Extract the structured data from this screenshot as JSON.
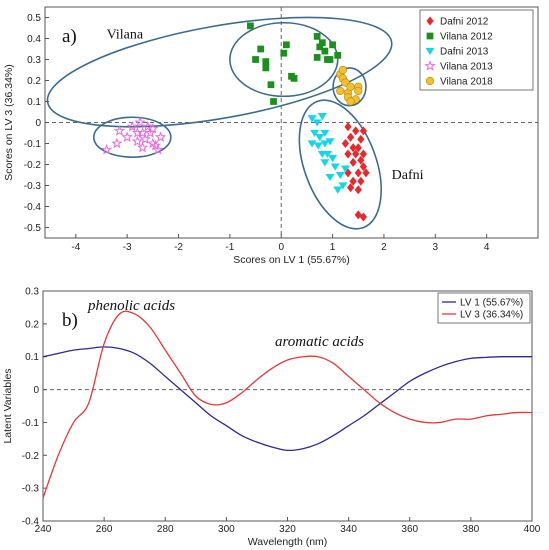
{
  "chart_data": [
    {
      "type": "scatter",
      "panel_label": "a)",
      "xlabel": "Scores on LV 1 (55.67%)",
      "ylabel": "Scores on LV 3 (36.34%)",
      "xlim": [
        -4.6,
        5.0
      ],
      "ylim": [
        -0.55,
        0.55
      ],
      "xticks": [
        -4,
        -3,
        -2,
        -1,
        0,
        1,
        2,
        3,
        4
      ],
      "yticks": [
        -0.5,
        -0.4,
        -0.3,
        -0.2,
        -0.1,
        0,
        0.1,
        0.2,
        0.3,
        0.4,
        0.5
      ],
      "grid": false,
      "legend_position": "top-right",
      "annotations": [
        {
          "text": "Vilana",
          "x": -3.4,
          "y": 0.4
        },
        {
          "text": "Dafni",
          "x": 2.15,
          "y": -0.27
        }
      ],
      "series": [
        {
          "name": "Dafni 2012",
          "marker": "diamond",
          "color": "#e8282b",
          "points": [
            [
              1.3,
              -0.02
            ],
            [
              1.45,
              -0.04
            ],
            [
              1.55,
              -0.08
            ],
            [
              1.6,
              -0.04
            ],
            [
              1.5,
              -0.12
            ],
            [
              1.4,
              -0.12
            ],
            [
              1.3,
              -0.15
            ],
            [
              1.45,
              -0.15
            ],
            [
              1.6,
              -0.15
            ],
            [
              1.55,
              -0.18
            ],
            [
              1.4,
              -0.19
            ],
            [
              1.6,
              -0.21
            ],
            [
              1.3,
              -0.24
            ],
            [
              1.5,
              -0.24
            ],
            [
              1.65,
              -0.24
            ],
            [
              1.4,
              -0.28
            ],
            [
              1.55,
              -0.28
            ],
            [
              1.5,
              -0.32
            ],
            [
              1.35,
              -0.31
            ],
            [
              1.5,
              -0.44
            ],
            [
              1.6,
              -0.45
            ],
            [
              1.25,
              -0.1
            ],
            [
              1.35,
              -0.07
            ]
          ]
        },
        {
          "name": "Vilana 2012",
          "marker": "square",
          "color": "#1c8f1e",
          "points": [
            [
              -0.6,
              0.46
            ],
            [
              -0.4,
              0.35
            ],
            [
              -0.5,
              0.3
            ],
            [
              -0.3,
              0.29
            ],
            [
              -0.3,
              0.26
            ],
            [
              -0.2,
              0.18
            ],
            [
              -0.15,
              0.1
            ],
            [
              0.05,
              0.33
            ],
            [
              0.1,
              0.37
            ],
            [
              0.2,
              0.22
            ],
            [
              0.25,
              0.21
            ],
            [
              0.7,
              0.41
            ],
            [
              0.8,
              0.38
            ],
            [
              0.75,
              0.36
            ],
            [
              0.85,
              0.34
            ],
            [
              0.9,
              0.3
            ],
            [
              0.7,
              0.31
            ],
            [
              1.0,
              0.37
            ],
            [
              0.95,
              0.3
            ],
            [
              1.1,
              0.32
            ]
          ]
        },
        {
          "name": "Dafni 2013",
          "marker": "triangle-down",
          "color": "#14d7e6",
          "points": [
            [
              0.6,
              0.02
            ],
            [
              0.7,
              0.0
            ],
            [
              0.8,
              0.03
            ],
            [
              0.65,
              -0.05
            ],
            [
              0.75,
              -0.07
            ],
            [
              0.85,
              -0.05
            ],
            [
              0.6,
              -0.1
            ],
            [
              0.72,
              -0.11
            ],
            [
              0.85,
              -0.1
            ],
            [
              0.95,
              -0.09
            ],
            [
              0.8,
              -0.15
            ],
            [
              0.9,
              -0.15
            ],
            [
              1.0,
              -0.17
            ],
            [
              0.85,
              -0.19
            ],
            [
              1.05,
              -0.21
            ],
            [
              0.95,
              -0.26
            ],
            [
              1.15,
              -0.25
            ],
            [
              1.1,
              -0.32
            ],
            [
              1.2,
              -0.3
            ],
            [
              1.25,
              -0.22
            ]
          ]
        },
        {
          "name": "Vilana 2013",
          "marker": "star",
          "color": "#e46be0",
          "points": [
            [
              -3.4,
              -0.13
            ],
            [
              -3.2,
              -0.1
            ],
            [
              -3.15,
              -0.04
            ],
            [
              -3.0,
              -0.07
            ],
            [
              -2.9,
              -0.02
            ],
            [
              -2.8,
              -0.09
            ],
            [
              -2.75,
              0.0
            ],
            [
              -2.7,
              -0.05
            ],
            [
              -2.65,
              -0.08
            ],
            [
              -2.6,
              -0.02
            ],
            [
              -2.55,
              -0.05
            ],
            [
              -2.5,
              -0.1
            ],
            [
              -2.45,
              -0.11
            ],
            [
              -2.4,
              -0.13
            ],
            [
              -2.35,
              -0.07
            ],
            [
              -2.7,
              -0.12
            ],
            [
              -2.8,
              -0.05
            ],
            [
              -2.5,
              -0.03
            ]
          ]
        },
        {
          "name": "Vilana 2018",
          "marker": "circle",
          "color": "#f2c12e",
          "points": [
            [
              1.15,
              0.23
            ],
            [
              1.2,
              0.25
            ],
            [
              1.2,
              0.21
            ],
            [
              1.25,
              0.19
            ],
            [
              1.3,
              0.14
            ],
            [
              1.3,
              0.12
            ],
            [
              1.35,
              0.17
            ],
            [
              1.5,
              0.17
            ],
            [
              1.5,
              0.15
            ],
            [
              1.45,
              0.11
            ],
            [
              1.35,
              0.1
            ],
            [
              1.15,
              0.15
            ]
          ]
        }
      ],
      "ellipses": [
        {
          "cx": -1.2,
          "cy": 0.24,
          "rx": 3.4,
          "ry": 0.22,
          "angle": -10
        },
        {
          "cx": -2.9,
          "cy": -0.07,
          "rx": 0.75,
          "ry": 0.095,
          "angle": 0
        },
        {
          "cx": 0.05,
          "cy": 0.3,
          "rx": 1.05,
          "ry": 0.175,
          "angle": 0
        },
        {
          "cx": 1.33,
          "cy": 0.17,
          "rx": 0.32,
          "ry": 0.09,
          "angle": 0
        },
        {
          "cx": 1.15,
          "cy": -0.2,
          "rx": 0.7,
          "ry": 0.32,
          "angle": -20
        }
      ]
    },
    {
      "type": "line",
      "panel_label": "b)",
      "xlabel": "Wavelength (nm)",
      "ylabel": "Latent Variables",
      "xlim": [
        240,
        400
      ],
      "ylim": [
        -0.4,
        0.3
      ],
      "xticks": [
        240,
        260,
        280,
        300,
        320,
        340,
        360,
        380,
        400
      ],
      "yticks": [
        -0.4,
        -0.3,
        -0.2,
        -0.1,
        0,
        0.1,
        0.2,
        0.3
      ],
      "legend_position": "top-right",
      "annotations": [
        {
          "text": "phenolic acids",
          "x": 258,
          "y": 0.26
        },
        {
          "text": "aromatic acids",
          "x": 324,
          "y": 0.13
        }
      ],
      "x": [
        240,
        245,
        250,
        255,
        260,
        265,
        270,
        275,
        280,
        285,
        290,
        295,
        300,
        305,
        310,
        315,
        320,
        325,
        330,
        335,
        340,
        345,
        350,
        355,
        360,
        365,
        370,
        375,
        380,
        385,
        390,
        395,
        400
      ],
      "series": [
        {
          "name": "LV 1 (55.67%)",
          "color": "#2b2b8e",
          "values": [
            0.1,
            0.11,
            0.12,
            0.125,
            0.13,
            0.125,
            0.11,
            0.08,
            0.04,
            0.0,
            -0.04,
            -0.08,
            -0.11,
            -0.14,
            -0.16,
            -0.175,
            -0.185,
            -0.18,
            -0.165,
            -0.14,
            -0.11,
            -0.08,
            -0.045,
            -0.01,
            0.025,
            0.05,
            0.07,
            0.085,
            0.095,
            0.098,
            0.1,
            0.1,
            0.1
          ]
        },
        {
          "name": "LV 3 (36.34%)",
          "color": "#e23a3a",
          "values": [
            -0.33,
            -0.2,
            -0.1,
            -0.04,
            0.14,
            0.23,
            0.23,
            0.19,
            0.12,
            0.05,
            -0.02,
            -0.045,
            -0.04,
            -0.01,
            0.03,
            0.065,
            0.09,
            0.1,
            0.1,
            0.08,
            0.04,
            0.0,
            -0.04,
            -0.07,
            -0.09,
            -0.1,
            -0.1,
            -0.09,
            -0.09,
            -0.08,
            -0.075,
            -0.07,
            -0.07
          ]
        }
      ]
    }
  ]
}
